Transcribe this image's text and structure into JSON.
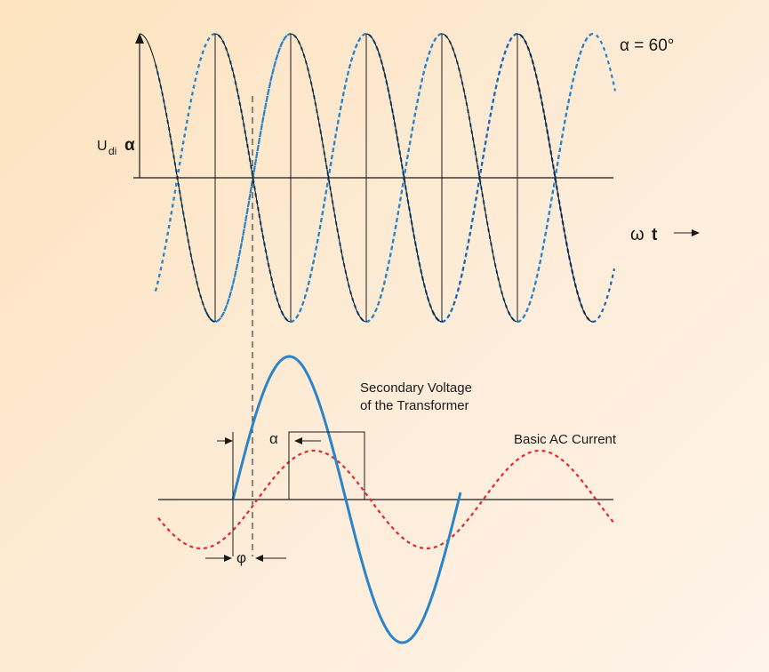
{
  "labels": {
    "alpha_value": "α = 60°",
    "udi_base": "U",
    "udi_sub": "di",
    "udi_alpha": "α",
    "omega": "ω",
    "t": "t",
    "arrow": "⟶",
    "secondary_line1": "Secondary Voltage",
    "secondary_line2": "of the Transformer",
    "basic_ac": "Basic AC Current",
    "alpha_marker": "α",
    "phi_marker": "φ"
  },
  "colors": {
    "background_start": "#fde3bf",
    "background_end": "#fef4ea",
    "ink": "#1a1a1a",
    "phase_wave": "#2a84c9",
    "phase_wave_dark": "#1e63b0",
    "secondary_voltage": "#2a84c9",
    "basic_ac_current": "#e8262b"
  },
  "parameters": {
    "firing_angle_deg": 60
  }
}
